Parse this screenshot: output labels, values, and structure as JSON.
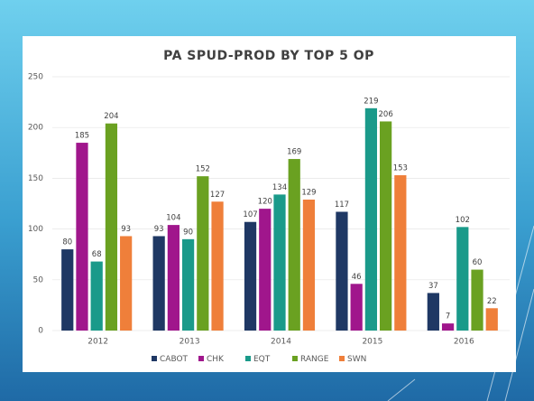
{
  "chart_data": {
    "type": "bar",
    "title": "PA SPUD-PROD BY TOP 5 OP",
    "categories": [
      "2012",
      "2013",
      "2014",
      "2015",
      "2016"
    ],
    "series": [
      {
        "name": "CABOT",
        "color": "#1f3864",
        "values": [
          80,
          93,
          107,
          117,
          37
        ]
      },
      {
        "name": "CHK",
        "color": "#a0168c",
        "values": [
          185,
          104,
          120,
          46,
          7
        ]
      },
      {
        "name": "EQT",
        "color": "#1a9a8a",
        "values": [
          68,
          90,
          134,
          219,
          102
        ]
      },
      {
        "name": "RANGE",
        "color": "#6aa121",
        "values": [
          204,
          152,
          169,
          206,
          60
        ]
      },
      {
        "name": "SWN",
        "color": "#ef7f3a",
        "values": [
          93,
          127,
          129,
          153,
          22
        ]
      }
    ],
    "ylim": [
      0,
      250
    ],
    "yticks": [
      0,
      50,
      100,
      150,
      200,
      250
    ],
    "grid": true,
    "legend": "bottom"
  }
}
